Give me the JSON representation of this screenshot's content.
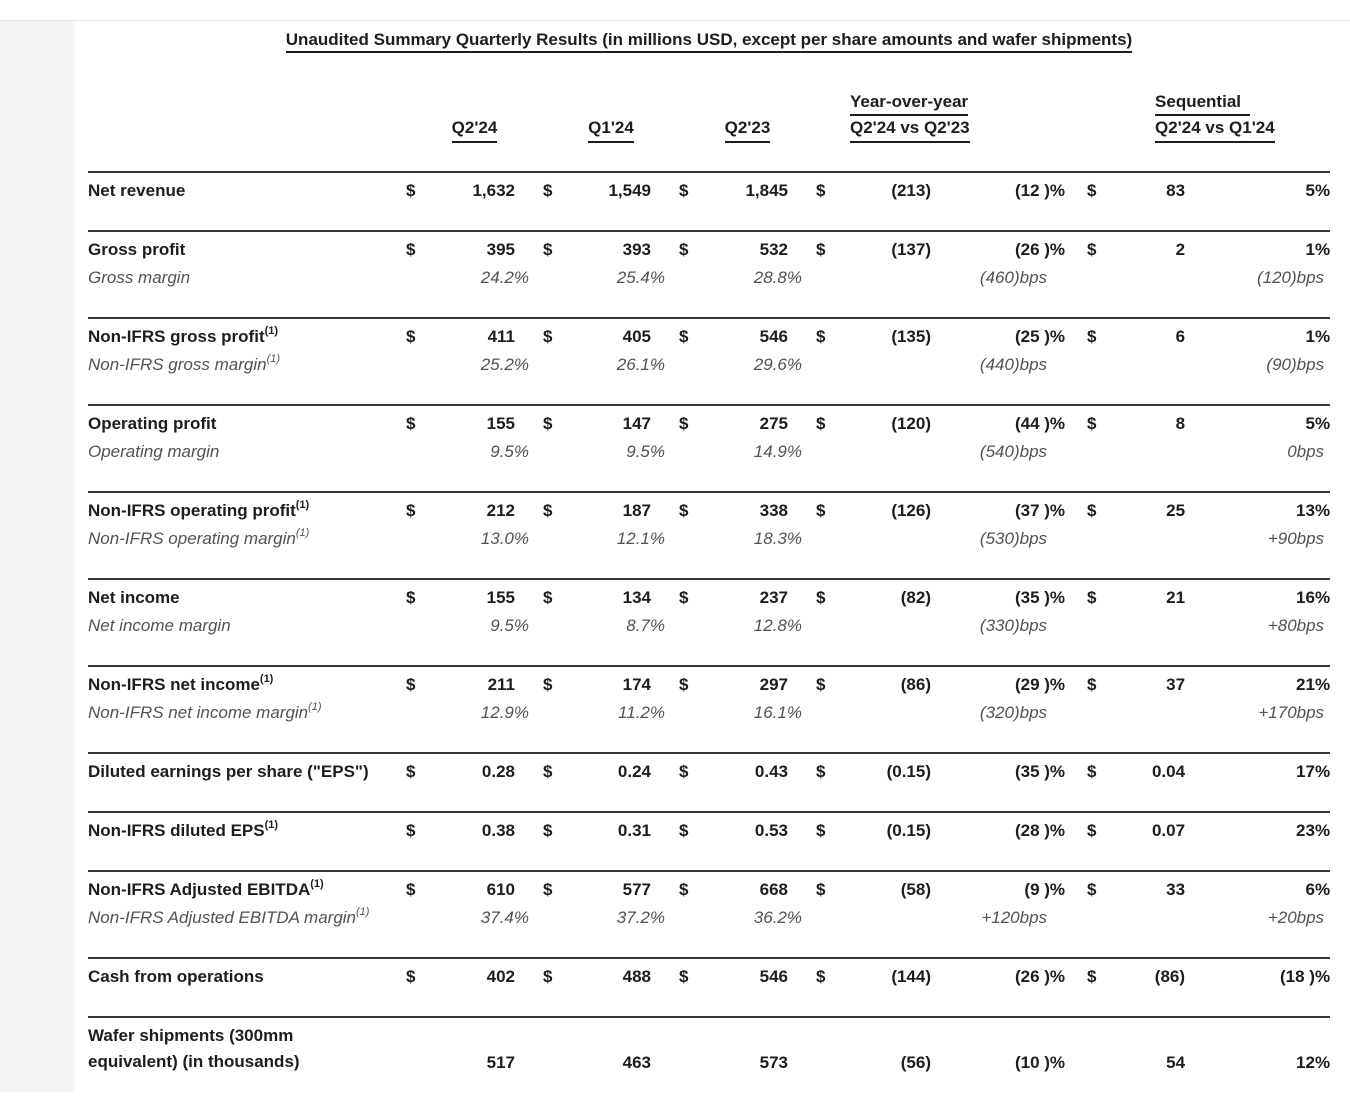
{
  "title": "Unaudited Summary Quarterly Results (in millions USD, except per share amounts and wafer shipments)",
  "currency_symbol": "$",
  "columns": {
    "q2_24": "Q2'24",
    "q1_24": "Q1'24",
    "q2_23": "Q2'23",
    "yoy_title": "Year-over-year",
    "yoy_sub": "Q2'24 vs Q2'23",
    "seq_title": "Sequential",
    "seq_sub": "Q2'24 vs Q1'24"
  },
  "groups": [
    {
      "label": "Net revenue",
      "sup": "",
      "label2": "",
      "dollar": true,
      "v": [
        "1,632",
        "1,549",
        "1,845"
      ],
      "yoy_d": "(213)",
      "yoy_p": "(12 )%",
      "seq_d": "83",
      "seq_p": "5%",
      "sub": null
    },
    {
      "label": "Gross profit",
      "sup": "",
      "label2": "",
      "dollar": true,
      "v": [
        "395",
        "393",
        "532"
      ],
      "yoy_d": "(137)",
      "yoy_p": "(26 )%",
      "seq_d": "2",
      "seq_p": "1%",
      "sub": {
        "label": "Gross margin",
        "sup": "",
        "v": [
          "24.2%",
          "25.4%",
          "28.8%"
        ],
        "yoy": "(460)bps",
        "seq": "(120)bps"
      }
    },
    {
      "label": "Non-IFRS gross profit",
      "sup": "(1)",
      "label2": "",
      "dollar": true,
      "v": [
        "411",
        "405",
        "546"
      ],
      "yoy_d": "(135)",
      "yoy_p": "(25 )%",
      "seq_d": "6",
      "seq_p": "1%",
      "sub": {
        "label": "Non-IFRS gross margin",
        "sup": "(1)",
        "v": [
          "25.2%",
          "26.1%",
          "29.6%"
        ],
        "yoy": "(440)bps",
        "seq": "(90)bps"
      }
    },
    {
      "label": "Operating profit",
      "sup": "",
      "label2": "",
      "dollar": true,
      "v": [
        "155",
        "147",
        "275"
      ],
      "yoy_d": "(120)",
      "yoy_p": "(44 )%",
      "seq_d": "8",
      "seq_p": "5%",
      "sub": {
        "label": "Operating margin",
        "sup": "",
        "v": [
          "9.5%",
          "9.5%",
          "14.9%"
        ],
        "yoy": "(540)bps",
        "seq": "0bps"
      }
    },
    {
      "label": "Non-IFRS operating profit",
      "sup": "(1)",
      "label2": "",
      "dollar": true,
      "v": [
        "212",
        "187",
        "338"
      ],
      "yoy_d": "(126)",
      "yoy_p": "(37 )%",
      "seq_d": "25",
      "seq_p": "13%",
      "sub": {
        "label": "Non-IFRS operating margin",
        "sup": "(1)",
        "v": [
          "13.0%",
          "12.1%",
          "18.3%"
        ],
        "yoy": "(530)bps",
        "seq": "+90bps"
      }
    },
    {
      "label": "Net income",
      "sup": "",
      "label2": "",
      "dollar": true,
      "v": [
        "155",
        "134",
        "237"
      ],
      "yoy_d": "(82)",
      "yoy_p": "(35 )%",
      "seq_d": "21",
      "seq_p": "16%",
      "sub": {
        "label": "Net income margin",
        "sup": "",
        "v": [
          "9.5%",
          "8.7%",
          "12.8%"
        ],
        "yoy": "(330)bps",
        "seq": "+80bps"
      }
    },
    {
      "label": "Non-IFRS net income",
      "sup": "(1)",
      "label2": "",
      "dollar": true,
      "v": [
        "211",
        "174",
        "297"
      ],
      "yoy_d": "(86)",
      "yoy_p": "(29 )%",
      "seq_d": "37",
      "seq_p": "21%",
      "sub": {
        "label": "Non-IFRS net income margin",
        "sup": "(1)",
        "v": [
          "12.9%",
          "11.2%",
          "16.1%"
        ],
        "yoy": "(320)bps",
        "seq": "+170bps"
      }
    },
    {
      "label": "Diluted earnings per share (\"EPS\")",
      "sup": "",
      "label2": "",
      "dollar": true,
      "v": [
        "0.28",
        "0.24",
        "0.43"
      ],
      "yoy_d": "(0.15)",
      "yoy_p": "(35 )%",
      "seq_d": "0.04",
      "seq_p": "17%",
      "sub": null
    },
    {
      "label": "Non-IFRS diluted EPS",
      "sup": "(1)",
      "label2": "",
      "dollar": true,
      "v": [
        "0.38",
        "0.31",
        "0.53"
      ],
      "yoy_d": "(0.15)",
      "yoy_p": "(28 )%",
      "seq_d": "0.07",
      "seq_p": "23%",
      "sub": null
    },
    {
      "label": "Non-IFRS Adjusted EBITDA",
      "sup": "(1)",
      "label2": "",
      "dollar": true,
      "v": [
        "610",
        "577",
        "668"
      ],
      "yoy_d": "(58)",
      "yoy_p": "(9 )%",
      "seq_d": "33",
      "seq_p": "6%",
      "sub": {
        "label": "Non-IFRS Adjusted EBITDA margin",
        "sup": "(1)",
        "v": [
          "37.4%",
          "37.2%",
          "36.2%"
        ],
        "yoy": "+120bps",
        "seq": "+20bps"
      }
    },
    {
      "label": "Cash from operations",
      "sup": "",
      "label2": "",
      "dollar": true,
      "v": [
        "402",
        "488",
        "546"
      ],
      "yoy_d": "(144)",
      "yoy_p": "(26 )%",
      "seq_d": "(86)",
      "seq_p": "(18 )%",
      "sub": null
    },
    {
      "label": "Wafer shipments (300mm",
      "sup": "",
      "label2": "equivalent) (in thousands)",
      "dollar": false,
      "v": [
        "517",
        "463",
        "573"
      ],
      "yoy_d": "(56)",
      "yoy_p": "(10 )%",
      "seq_d": "54",
      "seq_p": "12%",
      "sub": null
    }
  ]
}
